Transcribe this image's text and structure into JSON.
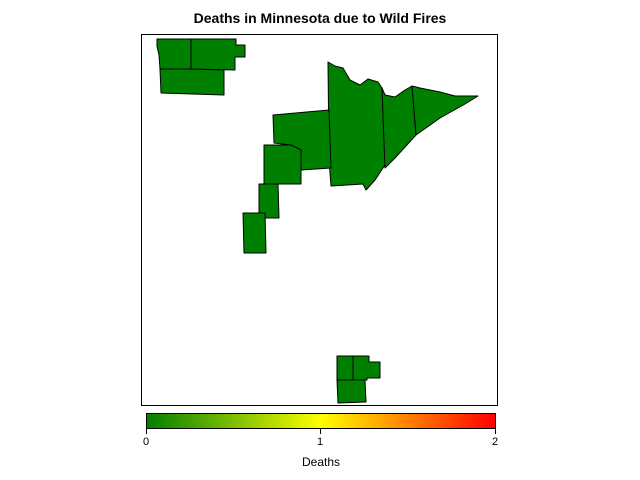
{
  "title": "Deaths in Minnesota due to Wild Fires",
  "legend": {
    "title": "Deaths",
    "ticks": [
      "0",
      "1",
      "2"
    ],
    "min": 0,
    "max": 2,
    "colors": [
      "#008000",
      "#ffff00",
      "#ff0000"
    ]
  },
  "chart_data": {
    "type": "choropleth",
    "region": "Minnesota",
    "measure": "Deaths",
    "range": [
      0,
      2
    ],
    "color_scale": [
      "#008000",
      "#ffff00",
      "#ff0000"
    ],
    "fill_color": "#008000",
    "county_values": [
      0,
      0,
      0,
      0,
      0,
      0,
      0,
      0,
      0,
      0,
      0,
      0,
      0,
      0,
      0,
      0,
      0,
      0,
      0
    ],
    "note_value_all": 0
  }
}
